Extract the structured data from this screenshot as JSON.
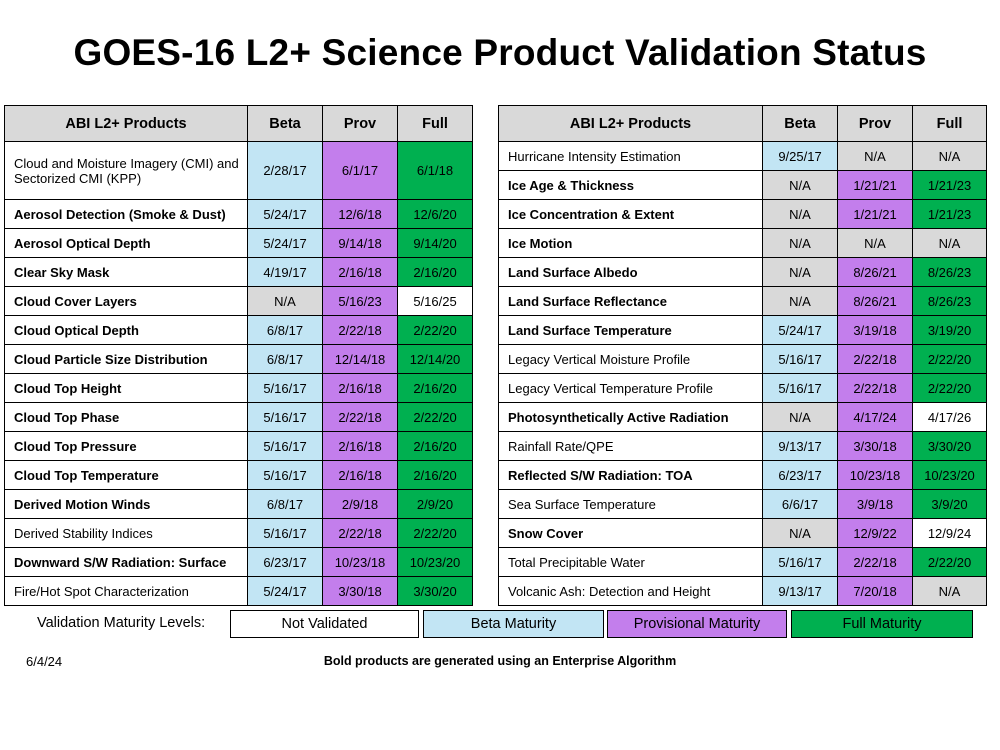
{
  "title": "GOES-16 L2+ Science Product Validation Status",
  "colors": {
    "none": "#ffffff",
    "beta": "#c2e5f4",
    "prov": "#c37eec",
    "full": "#00b050",
    "na": "#d9d9d9"
  },
  "headers": {
    "product": "ABI L2+ Products",
    "beta": "Beta",
    "prov": "Prov",
    "full": "Full"
  },
  "left_table": [
    {
      "name": "Cloud and Moisture Imagery (CMI) and Sectorized CMI (KPP)",
      "bold": false,
      "beta": "2/28/17",
      "beta_c": "beta",
      "prov": "6/1/17",
      "prov_c": "prov",
      "full": "6/1/18",
      "full_c": "full"
    },
    {
      "name": "Aerosol Detection (Smoke & Dust)",
      "bold": true,
      "beta": "5/24/17",
      "beta_c": "beta",
      "prov": "12/6/18",
      "prov_c": "prov",
      "full": "12/6/20",
      "full_c": "full"
    },
    {
      "name": "Aerosol Optical Depth",
      "bold": true,
      "beta": "5/24/17",
      "beta_c": "beta",
      "prov": "9/14/18",
      "prov_c": "prov",
      "full": "9/14/20",
      "full_c": "full"
    },
    {
      "name": "Clear Sky Mask",
      "bold": true,
      "beta": "4/19/17",
      "beta_c": "beta",
      "prov": "2/16/18",
      "prov_c": "prov",
      "full": "2/16/20",
      "full_c": "full"
    },
    {
      "name": "Cloud Cover Layers",
      "bold": true,
      "beta": "N/A",
      "beta_c": "na",
      "prov": "5/16/23",
      "prov_c": "prov",
      "full": "5/16/25",
      "full_c": "none"
    },
    {
      "name": "Cloud Optical Depth",
      "bold": true,
      "beta": "6/8/17",
      "beta_c": "beta",
      "prov": "2/22/18",
      "prov_c": "prov",
      "full": "2/22/20",
      "full_c": "full"
    },
    {
      "name": "Cloud Particle Size Distribution",
      "bold": true,
      "beta": "6/8/17",
      "beta_c": "beta",
      "prov": "12/14/18",
      "prov_c": "prov",
      "full": "12/14/20",
      "full_c": "full"
    },
    {
      "name": "Cloud Top Height",
      "bold": true,
      "beta": "5/16/17",
      "beta_c": "beta",
      "prov": "2/16/18",
      "prov_c": "prov",
      "full": "2/16/20",
      "full_c": "full"
    },
    {
      "name": "Cloud Top Phase",
      "bold": true,
      "beta": "5/16/17",
      "beta_c": "beta",
      "prov": "2/22/18",
      "prov_c": "prov",
      "full": "2/22/20",
      "full_c": "full"
    },
    {
      "name": "Cloud Top Pressure",
      "bold": true,
      "beta": "5/16/17",
      "beta_c": "beta",
      "prov": "2/16/18",
      "prov_c": "prov",
      "full": "2/16/20",
      "full_c": "full"
    },
    {
      "name": "Cloud Top Temperature",
      "bold": true,
      "beta": "5/16/17",
      "beta_c": "beta",
      "prov": "2/16/18",
      "prov_c": "prov",
      "full": "2/16/20",
      "full_c": "full"
    },
    {
      "name": "Derived Motion Winds",
      "bold": true,
      "beta": "6/8/17",
      "beta_c": "beta",
      "prov": "2/9/18",
      "prov_c": "prov",
      "full": "2/9/20",
      "full_c": "full"
    },
    {
      "name": "Derived Stability Indices",
      "bold": false,
      "beta": "5/16/17",
      "beta_c": "beta",
      "prov": "2/22/18",
      "prov_c": "prov",
      "full": "2/22/20",
      "full_c": "full"
    },
    {
      "name": "Downward S/W Radiation: Surface",
      "bold": true,
      "beta": "6/23/17",
      "beta_c": "beta",
      "prov": "10/23/18",
      "prov_c": "prov",
      "full": "10/23/20",
      "full_c": "full"
    },
    {
      "name": "Fire/Hot Spot Characterization",
      "bold": false,
      "beta": "5/24/17",
      "beta_c": "beta",
      "prov": "3/30/18",
      "prov_c": "prov",
      "full": "3/30/20",
      "full_c": "full"
    }
  ],
  "right_table": [
    {
      "name": "Hurricane Intensity Estimation",
      "bold": false,
      "beta": "9/25/17",
      "beta_c": "beta",
      "prov": "N/A",
      "prov_c": "na",
      "full": "N/A",
      "full_c": "na"
    },
    {
      "name": "Ice Age & Thickness",
      "bold": true,
      "beta": "N/A",
      "beta_c": "na",
      "prov": "1/21/21",
      "prov_c": "prov",
      "full": "1/21/23",
      "full_c": "full"
    },
    {
      "name": "Ice Concentration & Extent",
      "bold": true,
      "beta": "N/A",
      "beta_c": "na",
      "prov": "1/21/21",
      "prov_c": "prov",
      "full": "1/21/23",
      "full_c": "full"
    },
    {
      "name": "Ice Motion",
      "bold": true,
      "beta": "N/A",
      "beta_c": "na",
      "prov": "N/A",
      "prov_c": "na",
      "full": "N/A",
      "full_c": "na"
    },
    {
      "name": "Land Surface Albedo",
      "bold": true,
      "beta": "N/A",
      "beta_c": "na",
      "prov": "8/26/21",
      "prov_c": "prov",
      "full": "8/26/23",
      "full_c": "full"
    },
    {
      "name": "Land Surface Reflectance",
      "bold": true,
      "beta": "N/A",
      "beta_c": "na",
      "prov": "8/26/21",
      "prov_c": "prov",
      "full": "8/26/23",
      "full_c": "full"
    },
    {
      "name": "Land Surface Temperature",
      "bold": true,
      "beta": "5/24/17",
      "beta_c": "beta",
      "prov": "3/19/18",
      "prov_c": "prov",
      "full": "3/19/20",
      "full_c": "full"
    },
    {
      "name": "Legacy Vertical Moisture Profile",
      "bold": false,
      "beta": "5/16/17",
      "beta_c": "beta",
      "prov": "2/22/18",
      "prov_c": "prov",
      "full": "2/22/20",
      "full_c": "full"
    },
    {
      "name": "Legacy Vertical Temperature Profile",
      "bold": false,
      "beta": "5/16/17",
      "beta_c": "beta",
      "prov": "2/22/18",
      "prov_c": "prov",
      "full": "2/22/20",
      "full_c": "full"
    },
    {
      "name": "Photosynthetically Active Radiation",
      "bold": true,
      "beta": "N/A",
      "beta_c": "na",
      "prov": "4/17/24",
      "prov_c": "prov",
      "full": "4/17/26",
      "full_c": "none"
    },
    {
      "name": "Rainfall Rate/QPE",
      "bold": false,
      "beta": "9/13/17",
      "beta_c": "beta",
      "prov": "3/30/18",
      "prov_c": "prov",
      "full": "3/30/20",
      "full_c": "full"
    },
    {
      "name": "Reflected S/W Radiation: TOA",
      "bold": true,
      "beta": "6/23/17",
      "beta_c": "beta",
      "prov": "10/23/18",
      "prov_c": "prov",
      "full": "10/23/20",
      "full_c": "full"
    },
    {
      "name": "Sea Surface Temperature",
      "bold": false,
      "beta": "6/6/17",
      "beta_c": "beta",
      "prov": "3/9/18",
      "prov_c": "prov",
      "full": "3/9/20",
      "full_c": "full"
    },
    {
      "name": "Snow Cover",
      "bold": true,
      "beta": "N/A",
      "beta_c": "na",
      "prov": "12/9/22",
      "prov_c": "prov",
      "full": "12/9/24",
      "full_c": "none"
    },
    {
      "name": "Total Precipitable Water",
      "bold": false,
      "beta": "5/16/17",
      "beta_c": "beta",
      "prov": "2/22/18",
      "prov_c": "prov",
      "full": "2/22/20",
      "full_c": "full"
    },
    {
      "name": "Volcanic Ash: Detection and Height",
      "bold": false,
      "beta": "9/13/17",
      "beta_c": "beta",
      "prov": "7/20/18",
      "prov_c": "prov",
      "full": "N/A",
      "full_c": "na"
    }
  ],
  "legend": {
    "label": "Validation Maturity Levels:",
    "items": [
      {
        "text": "Not Validated",
        "c": "none"
      },
      {
        "text": "Beta Maturity",
        "c": "beta"
      },
      {
        "text": "Provisional Maturity",
        "c": "prov"
      },
      {
        "text": "Full Maturity",
        "c": "full"
      }
    ]
  },
  "footer": {
    "date": "6/4/24",
    "note": "Bold products are generated using an Enterprise Algorithm"
  }
}
